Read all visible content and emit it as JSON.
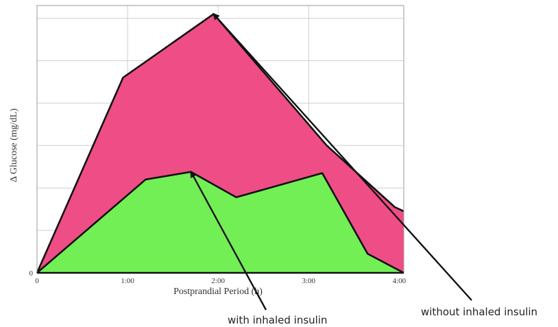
{
  "chart_data": {
    "type": "area",
    "xlabel": "Postprandial Period (h)",
    "ylabel": "Δ Glucose (mg/dL)",
    "x_ticks": [
      "0",
      "1:00",
      "2:00",
      "3:00",
      "4:00"
    ],
    "y_ticks": [
      "0"
    ],
    "xlim": [
      0,
      4.05
    ],
    "ylim": [
      0,
      6.3
    ],
    "grid": true,
    "colors": {
      "upper_fill": "#ef4d86",
      "lower_fill": "#72ef55",
      "outline": "#111111"
    },
    "series": [
      {
        "x": [
          0,
          0.95,
          1.95,
          3.2,
          3.95,
          4.05
        ],
        "y": [
          0,
          4.6,
          6.1,
          3.0,
          1.55,
          1.45
        ]
      },
      {
        "x": [
          0,
          1.2,
          1.7,
          2.2,
          3.15,
          3.65,
          4.05
        ],
        "y": [
          0,
          2.2,
          2.38,
          1.78,
          2.35,
          0.45,
          0
        ]
      }
    ],
    "annotations": [
      {
        "text": "without inhaled insulin",
        "target_series": 0,
        "target": [
          1.95,
          6.1
        ]
      },
      {
        "text": "with inhaled insulin",
        "target_series": 1,
        "target": [
          1.7,
          2.38
        ]
      }
    ]
  }
}
